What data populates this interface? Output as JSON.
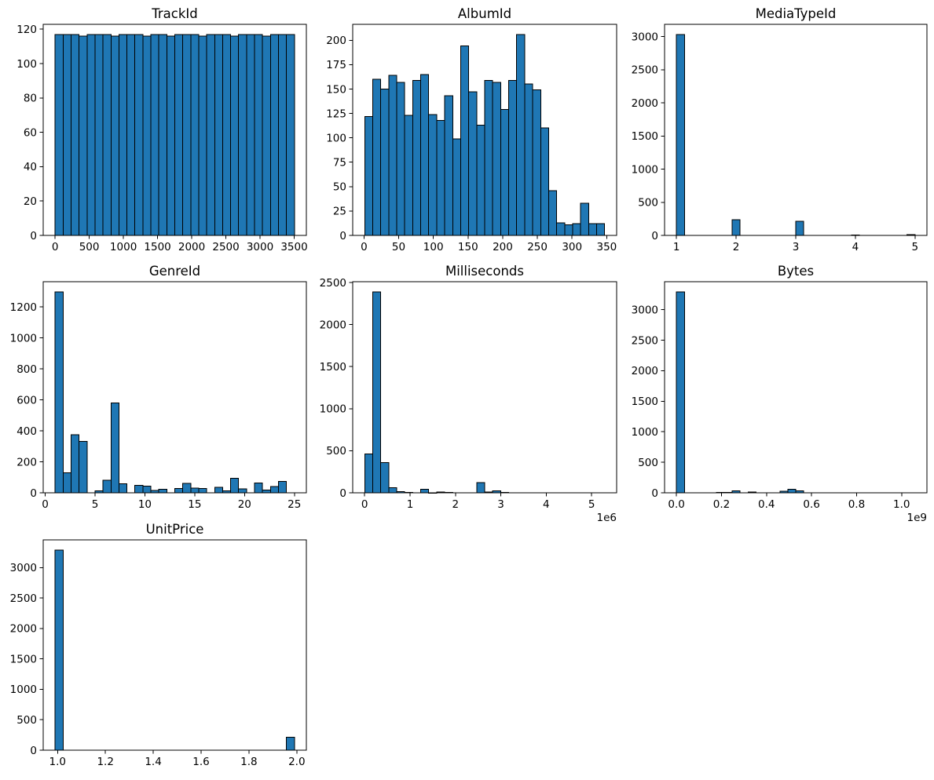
{
  "figure": {
    "background": "#ffffff",
    "bar_fill": "#1f77b4",
    "bar_edge": "#000000",
    "axis_color": "#000000",
    "text_color": "#000000",
    "grid": false,
    "legend": "none",
    "layout": "3x3 subplot grid, 7 histograms used"
  },
  "chart_data": [
    {
      "type": "bar",
      "subtype": "histogram",
      "title": "TrackId",
      "grid_row": 0,
      "grid_col": 0,
      "bins": 30,
      "bin_start": 1,
      "bin_width": 116.7333,
      "counts": [
        117,
        117,
        117,
        116,
        117,
        117,
        117,
        116,
        117,
        117,
        117,
        116,
        117,
        117,
        116,
        117,
        117,
        117,
        116,
        117,
        117,
        117,
        116,
        117,
        117,
        117,
        116,
        117,
        117,
        117
      ],
      "xlim": [
        -174.1,
        3678.1
      ],
      "ylim": [
        0,
        122.85
      ],
      "xticks": [
        0,
        500,
        1000,
        1500,
        2000,
        2500,
        3000,
        3500
      ],
      "xtick_labels": [
        "0",
        "500",
        "1000",
        "1500",
        "2000",
        "2500",
        "3000",
        "3500"
      ],
      "yticks": [
        0,
        20,
        40,
        60,
        80,
        100,
        120
      ],
      "ytick_labels": [
        "0",
        "20",
        "40",
        "60",
        "80",
        "100",
        "120"
      ],
      "x_offset_label": ""
    },
    {
      "type": "bar",
      "subtype": "histogram",
      "title": "AlbumId",
      "grid_row": 0,
      "grid_col": 1,
      "bins": 30,
      "bin_start": 1,
      "bin_width": 11.5333,
      "counts": [
        122,
        160,
        150,
        164,
        157,
        123,
        159,
        165,
        124,
        118,
        143,
        99,
        194,
        147,
        113,
        159,
        157,
        129,
        159,
        206,
        155,
        149,
        110,
        46,
        13,
        11,
        12,
        33,
        12,
        12
      ],
      "xlim": [
        -16.3,
        364.3
      ],
      "ylim": [
        0,
        216.3
      ],
      "xticks": [
        0,
        50,
        100,
        150,
        200,
        250,
        300,
        350
      ],
      "xtick_labels": [
        "0",
        "50",
        "100",
        "150",
        "200",
        "250",
        "300",
        "350"
      ],
      "yticks": [
        0,
        25,
        50,
        75,
        100,
        125,
        150,
        175,
        200
      ],
      "ytick_labels": [
        "0",
        "25",
        "50",
        "75",
        "100",
        "125",
        "150",
        "175",
        "200"
      ],
      "x_offset_label": ""
    },
    {
      "type": "bar",
      "subtype": "histogram",
      "title": "MediaTypeId",
      "grid_row": 0,
      "grid_col": 2,
      "bins": 30,
      "bin_start": 1,
      "bin_width": 0.1333333,
      "counts": [
        3034,
        0,
        0,
        0,
        0,
        0,
        0,
        237,
        0,
        0,
        0,
        0,
        0,
        0,
        0,
        214,
        0,
        0,
        0,
        0,
        0,
        0,
        7,
        0,
        0,
        0,
        0,
        0,
        0,
        11
      ],
      "xlim": [
        0.8,
        5.2
      ],
      "ylim": [
        0,
        3185.7
      ],
      "xticks": [
        1,
        2,
        3,
        4,
        5
      ],
      "xtick_labels": [
        "1",
        "2",
        "3",
        "4",
        "5"
      ],
      "yticks": [
        0,
        500,
        1000,
        1500,
        2000,
        2500,
        3000
      ],
      "ytick_labels": [
        "0",
        "500",
        "1000",
        "1500",
        "2000",
        "2500",
        "3000"
      ],
      "x_offset_label": ""
    },
    {
      "type": "bar",
      "subtype": "histogram",
      "title": "GenreId",
      "grid_row": 1,
      "grid_col": 0,
      "bins": 30,
      "bin_start": 1,
      "bin_width": 0.8,
      "counts": [
        1297,
        130,
        374,
        332,
        0,
        12,
        81,
        579,
        58,
        0,
        48,
        43,
        15,
        24,
        0,
        28,
        61,
        30,
        28,
        0,
        35,
        13,
        93,
        26,
        0,
        64,
        17,
        40,
        74,
        1
      ],
      "xlim": [
        -0.2,
        26.2
      ],
      "ylim": [
        0,
        1361.85
      ],
      "xticks": [
        0,
        5,
        10,
        15,
        20,
        25
      ],
      "xtick_labels": [
        "0",
        "5",
        "10",
        "15",
        "20",
        "25"
      ],
      "yticks": [
        0,
        200,
        400,
        600,
        800,
        1000,
        1200
      ],
      "ytick_labels": [
        "0",
        "200",
        "400",
        "600",
        "800",
        "1000",
        "1200"
      ],
      "x_offset_label": ""
    },
    {
      "type": "bar",
      "subtype": "histogram",
      "title": "Milliseconds",
      "grid_row": 1,
      "grid_col": 1,
      "bins": 30,
      "bin_start": 1071,
      "bin_width": 176196.07,
      "counts": [
        462,
        2390,
        360,
        62,
        16,
        5,
        2,
        43,
        1,
        10,
        3,
        0,
        0,
        0,
        120,
        8,
        25,
        4,
        0,
        0,
        0,
        0,
        0,
        0,
        0,
        0,
        0,
        0,
        0,
        2
      ],
      "xlim": [
        -263223,
        5551247
      ],
      "ylim": [
        0,
        2509.5
      ],
      "xticks": [
        0,
        1000000,
        2000000,
        3000000,
        4000000,
        5000000
      ],
      "xtick_labels": [
        "0",
        "1",
        "2",
        "3",
        "4",
        "5"
      ],
      "yticks": [
        0,
        500,
        1000,
        1500,
        2000,
        2500
      ],
      "ytick_labels": [
        "0",
        "500",
        "1000",
        "1500",
        "2000",
        "2500"
      ],
      "x_offset_label": "1e6"
    },
    {
      "type": "bar",
      "subtype": "histogram",
      "title": "Bytes",
      "grid_row": 1,
      "grid_col": 2,
      "bins": 30,
      "bin_start": 38747,
      "bin_width": 35316913,
      "counts": [
        3293,
        0,
        0,
        0,
        0,
        8,
        5,
        35,
        3,
        12,
        2,
        0,
        0,
        25,
        60,
        35,
        0,
        0,
        0,
        0,
        0,
        0,
        0,
        0,
        0,
        0,
        0,
        0,
        0,
        2
      ],
      "xlim": [
        -52936623,
        1112521510
      ],
      "ylim": [
        0,
        3457.65
      ],
      "xticks": [
        0,
        200000000,
        400000000,
        600000000,
        800000000,
        1000000000
      ],
      "xtick_labels": [
        "0.0",
        "0.2",
        "0.4",
        "0.6",
        "0.8",
        "1.0"
      ],
      "yticks": [
        0,
        500,
        1000,
        1500,
        2000,
        2500,
        3000
      ],
      "ytick_labels": [
        "0",
        "500",
        "1000",
        "1500",
        "2000",
        "2500",
        "3000"
      ],
      "x_offset_label": "1e9"
    },
    {
      "type": "bar",
      "subtype": "histogram",
      "title": "UnitPrice",
      "grid_row": 2,
      "grid_col": 0,
      "bins": 30,
      "bin_start": 0.99,
      "bin_width": 0.0333333,
      "counts": [
        3290,
        0,
        0,
        0,
        0,
        0,
        0,
        0,
        0,
        0,
        0,
        0,
        0,
        0,
        0,
        0,
        0,
        0,
        0,
        0,
        0,
        0,
        0,
        0,
        0,
        0,
        0,
        0,
        0,
        213
      ],
      "xlim": [
        0.94,
        2.04
      ],
      "ylim": [
        0,
        3454.5
      ],
      "xticks": [
        1.0,
        1.2,
        1.4,
        1.6,
        1.8,
        2.0
      ],
      "xtick_labels": [
        "1.0",
        "1.2",
        "1.4",
        "1.6",
        "1.8",
        "2.0"
      ],
      "yticks": [
        0,
        500,
        1000,
        1500,
        2000,
        2500,
        3000
      ],
      "ytick_labels": [
        "0",
        "500",
        "1000",
        "1500",
        "2000",
        "2500",
        "3000"
      ],
      "x_offset_label": ""
    }
  ]
}
